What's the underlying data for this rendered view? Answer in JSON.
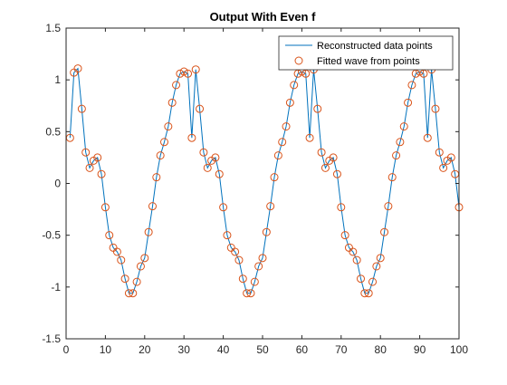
{
  "chart_data": {
    "type": "line",
    "title": "Output With Even f",
    "xlabel": "",
    "ylabel": "",
    "xlim": [
      0,
      100
    ],
    "ylim": [
      -1.5,
      1.5
    ],
    "xticks": [
      0,
      10,
      20,
      30,
      40,
      50,
      60,
      70,
      80,
      90,
      100
    ],
    "yticks": [
      -1.5,
      -1,
      -0.5,
      0,
      0.5,
      1,
      1.5
    ],
    "grid": false,
    "legend_position": "top-right",
    "colors": {
      "line": "#0072BD",
      "marker": "#D95319",
      "axes": "#262626"
    },
    "series": [
      {
        "name": "Reconstructed data points",
        "style": "line",
        "x": [
          1,
          2,
          3,
          4,
          5,
          6,
          7,
          8,
          9,
          10,
          11,
          12,
          13,
          14,
          15,
          16,
          17,
          18,
          19,
          20,
          21,
          22,
          23,
          24,
          25,
          26,
          27,
          28,
          29,
          30,
          31,
          32,
          33,
          34,
          35,
          36,
          37,
          38,
          39,
          40,
          41,
          42,
          43,
          44,
          45,
          46,
          47,
          48,
          49,
          50,
          51,
          52,
          53,
          54,
          55,
          56,
          57,
          58,
          59,
          60,
          61,
          62,
          63,
          64,
          65,
          66,
          67,
          68,
          69,
          70,
          71,
          72,
          73,
          74,
          75,
          76,
          77,
          78,
          79,
          80,
          81,
          82,
          83,
          84,
          85,
          86,
          87,
          88,
          89,
          90,
          91,
          92,
          93,
          94,
          95,
          96,
          97,
          98,
          99,
          100
        ],
        "y": [
          0.44,
          1.07,
          1.11,
          0.72,
          0.3,
          0.15,
          0.22,
          0.25,
          0.09,
          -0.23,
          -0.5,
          -0.62,
          -0.66,
          -0.74,
          -0.92,
          -1.06,
          -1.06,
          -0.95,
          -0.8,
          -0.72,
          -0.47,
          -0.22,
          0.06,
          0.27,
          0.4,
          0.55,
          0.78,
          0.95,
          1.06,
          1.08,
          1.06,
          0.44,
          1.1,
          0.72,
          0.3,
          0.15,
          0.22,
          0.25,
          0.09,
          -0.23,
          -0.5,
          -0.62,
          -0.66,
          -0.74,
          -0.92,
          -1.06,
          -1.06,
          -0.95,
          -0.8,
          -0.72,
          -0.47,
          -0.22,
          0.06,
          0.27,
          0.4,
          0.55,
          0.78,
          0.95,
          1.06,
          1.08,
          1.06,
          0.44,
          1.1,
          0.72,
          0.3,
          0.15,
          0.22,
          0.25,
          0.09,
          -0.23,
          -0.5,
          -0.62,
          -0.66,
          -0.74,
          -0.92,
          -1.06,
          -1.06,
          -0.95,
          -0.8,
          -0.72,
          -0.47,
          -0.22,
          0.06,
          0.27,
          0.4,
          0.55,
          0.78,
          0.95,
          1.06,
          1.08,
          1.06,
          0.44,
          1.1,
          0.72,
          0.3,
          0.15,
          0.22,
          0.25,
          0.09,
          -0.23
        ]
      },
      {
        "name": "Fitted wave from points",
        "style": "markers",
        "marker": "circle",
        "x": [
          1,
          2,
          3,
          4,
          5,
          6,
          7,
          8,
          9,
          10,
          11,
          12,
          13,
          14,
          15,
          16,
          17,
          18,
          19,
          20,
          21,
          22,
          23,
          24,
          25,
          26,
          27,
          28,
          29,
          30,
          31,
          32,
          33,
          34,
          35,
          36,
          37,
          38,
          39,
          40,
          41,
          42,
          43,
          44,
          45,
          46,
          47,
          48,
          49,
          50,
          51,
          52,
          53,
          54,
          55,
          56,
          57,
          58,
          59,
          60,
          61,
          62,
          63,
          64,
          65,
          66,
          67,
          68,
          69,
          70,
          71,
          72,
          73,
          74,
          75,
          76,
          77,
          78,
          79,
          80,
          81,
          82,
          83,
          84,
          85,
          86,
          87,
          88,
          89,
          90,
          91,
          92,
          93,
          94,
          95,
          96,
          97,
          98,
          99,
          100
        ],
        "y": [
          0.44,
          1.07,
          1.11,
          0.72,
          0.3,
          0.15,
          0.22,
          0.25,
          0.09,
          -0.23,
          -0.5,
          -0.62,
          -0.66,
          -0.74,
          -0.92,
          -1.06,
          -1.06,
          -0.95,
          -0.8,
          -0.72,
          -0.47,
          -0.22,
          0.06,
          0.27,
          0.4,
          0.55,
          0.78,
          0.95,
          1.06,
          1.08,
          1.06,
          0.44,
          1.1,
          0.72,
          0.3,
          0.15,
          0.22,
          0.25,
          0.09,
          -0.23,
          -0.5,
          -0.62,
          -0.66,
          -0.74,
          -0.92,
          -1.06,
          -1.06,
          -0.95,
          -0.8,
          -0.72,
          -0.47,
          -0.22,
          0.06,
          0.27,
          0.4,
          0.55,
          0.78,
          0.95,
          1.06,
          1.08,
          1.06,
          0.44,
          1.1,
          0.72,
          0.3,
          0.15,
          0.22,
          0.25,
          0.09,
          -0.23,
          -0.5,
          -0.62,
          -0.66,
          -0.74,
          -0.92,
          -1.06,
          -1.06,
          -0.95,
          -0.8,
          -0.72,
          -0.47,
          -0.22,
          0.06,
          0.27,
          0.4,
          0.55,
          0.78,
          0.95,
          1.06,
          1.08,
          1.06,
          0.44,
          1.1,
          0.72,
          0.3,
          0.15,
          0.22,
          0.25,
          0.09,
          -0.23
        ]
      }
    ]
  }
}
